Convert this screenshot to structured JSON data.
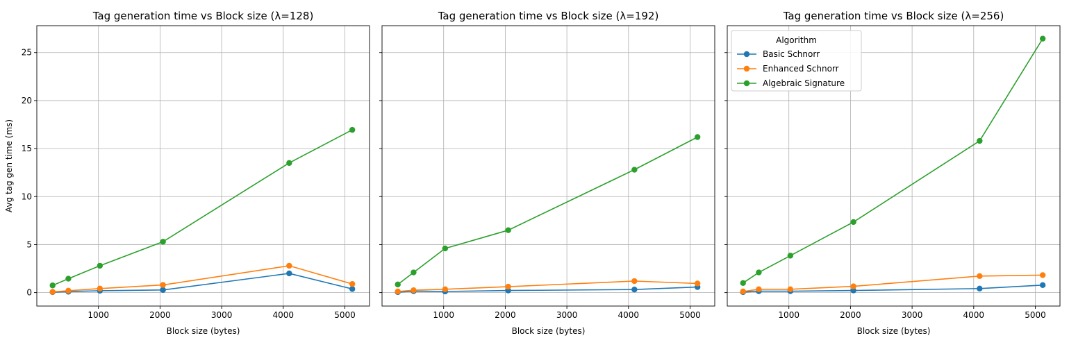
{
  "colors": {
    "basic": "#1f77b4",
    "enhanced": "#ff7f0e",
    "algebraic": "#2ca02c",
    "grid": "#b0b0b0",
    "axes": "#000000"
  },
  "legend": {
    "title": "Algorithm",
    "location": "top-left of third panel"
  },
  "chart_data": [
    {
      "type": "line",
      "title": "Tag generation time vs Block size (λ=128)",
      "xlabel": "Block size (bytes)",
      "ylabel": "Avg tag gen time (ms)",
      "x": [
        256,
        512,
        1024,
        2048,
        4096,
        5120
      ],
      "xlim": [
        0,
        5400
      ],
      "ylim": [
        -1.4,
        27.8
      ],
      "xticks": [
        1000,
        2000,
        3000,
        4000,
        5000
      ],
      "yticks": [
        0,
        5,
        10,
        15,
        20,
        25
      ],
      "grid": true,
      "series": [
        {
          "name": "Basic Schnorr",
          "color_key": "basic",
          "values": [
            0.05,
            0.1,
            0.2,
            0.28,
            2.0,
            0.38
          ]
        },
        {
          "name": "Enhanced Schnorr",
          "color_key": "enhanced",
          "values": [
            0.08,
            0.2,
            0.42,
            0.8,
            2.8,
            0.9
          ]
        },
        {
          "name": "Algebraic Signature",
          "color_key": "algebraic",
          "values": [
            0.75,
            1.45,
            2.8,
            5.3,
            13.5,
            16.95
          ]
        }
      ]
    },
    {
      "type": "line",
      "title": "Tag generation time vs Block size (λ=192)",
      "xlabel": "Block size (bytes)",
      "ylabel": "",
      "x": [
        256,
        512,
        1024,
        2048,
        4096,
        5120
      ],
      "xlim": [
        0,
        5400
      ],
      "ylim": [
        -1.4,
        27.8
      ],
      "xticks": [
        1000,
        2000,
        3000,
        4000,
        5000
      ],
      "yticks": [
        0,
        5,
        10,
        15,
        20,
        25
      ],
      "grid": true,
      "series": [
        {
          "name": "Basic Schnorr",
          "color_key": "basic",
          "values": [
            0.05,
            0.15,
            0.12,
            0.22,
            0.32,
            0.58
          ]
        },
        {
          "name": "Enhanced Schnorr",
          "color_key": "enhanced",
          "values": [
            0.12,
            0.25,
            0.35,
            0.62,
            1.2,
            0.95
          ]
        },
        {
          "name": "Algebraic Signature",
          "color_key": "algebraic",
          "values": [
            0.85,
            2.1,
            4.6,
            6.5,
            12.8,
            16.2
          ]
        }
      ]
    },
    {
      "type": "line",
      "title": "Tag generation time vs Block size (λ=256)",
      "xlabel": "Block size (bytes)",
      "ylabel": "",
      "x": [
        256,
        512,
        1024,
        2048,
        4096,
        5120
      ],
      "xlim": [
        0,
        5400
      ],
      "ylim": [
        -1.4,
        27.8
      ],
      "xticks": [
        1000,
        2000,
        3000,
        4000,
        5000
      ],
      "yticks": [
        0,
        5,
        10,
        15,
        20,
        25
      ],
      "grid": true,
      "series": [
        {
          "name": "Basic Schnorr",
          "color_key": "basic",
          "values": [
            0.05,
            0.15,
            0.15,
            0.22,
            0.42,
            0.78
          ]
        },
        {
          "name": "Enhanced Schnorr",
          "color_key": "enhanced",
          "values": [
            0.12,
            0.35,
            0.35,
            0.65,
            1.72,
            1.82
          ]
        },
        {
          "name": "Algebraic Signature",
          "color_key": "algebraic",
          "values": [
            1.0,
            2.1,
            3.85,
            7.35,
            15.8,
            26.45
          ]
        }
      ]
    }
  ]
}
